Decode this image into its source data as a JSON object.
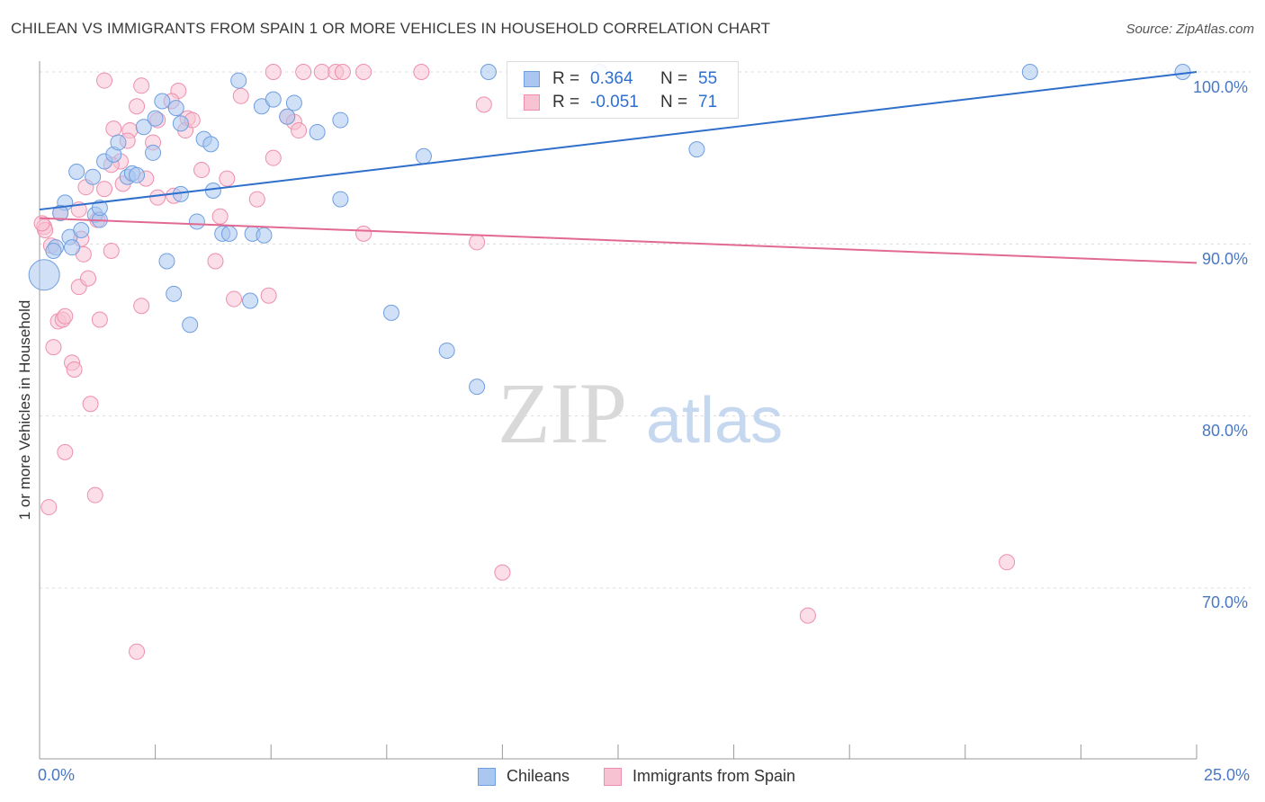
{
  "title": "CHILEAN VS IMMIGRANTS FROM SPAIN 1 OR MORE VEHICLES IN HOUSEHOLD CORRELATION CHART",
  "source": "Source: ZipAtlas.com",
  "watermark": {
    "zip": "ZIP",
    "atlas": "atlas"
  },
  "legend": {
    "row1": {
      "r_label": "R =",
      "r_value": "0.364",
      "n_label": "N =",
      "n_value": "55"
    },
    "row2": {
      "r_label": "R =",
      "r_value": "-0.051",
      "n_label": "N =",
      "n_value": "71"
    }
  },
  "colors": {
    "blue": "#6f9fe0",
    "blue_fill": "#a9c7f0",
    "blue_line": "#2f6fcc",
    "pink": "#ee8fad",
    "pink_fill": "#f7c3d3",
    "pink_line": "#e26a92",
    "tick_text": "#4a78c4"
  },
  "chart_data": {
    "type": "scatter",
    "title": "CHILEAN VS IMMIGRANTS FROM SPAIN 1 OR MORE VEHICLES IN HOUSEHOLD CORRELATION CHART",
    "xlabel": "",
    "ylabel": "1 or more Vehicles in Household",
    "xlim": [
      0,
      25
    ],
    "ylim": [
      59,
      100.8
    ],
    "x_ticks": [
      "0.0%",
      "25.0%"
    ],
    "y_ticks": [
      {
        "value": 100,
        "label": "100.0%"
      },
      {
        "value": 90,
        "label": "90.0%"
      },
      {
        "value": 80,
        "label": "80.0%"
      },
      {
        "value": 70,
        "label": "70.0%"
      }
    ],
    "grid": true,
    "legend_position": "top-center",
    "series": [
      {
        "name": "Chileans",
        "color": "#6f9fe0",
        "trend": {
          "x": [
            0,
            25
          ],
          "y": [
            92.0,
            100.0
          ]
        },
        "points": [
          [
            0.55,
            92.4
          ],
          [
            0.45,
            91.8
          ],
          [
            1.2,
            91.7
          ],
          [
            1.3,
            91.4
          ],
          [
            0.65,
            90.4
          ],
          [
            0.35,
            89.8
          ],
          [
            0.3,
            89.6
          ],
          [
            0.9,
            90.8
          ],
          [
            0.8,
            94.2
          ],
          [
            1.15,
            93.9
          ],
          [
            1.4,
            94.8
          ],
          [
            1.6,
            95.2
          ],
          [
            1.7,
            95.9
          ],
          [
            1.9,
            93.9
          ],
          [
            2.0,
            94.1
          ],
          [
            2.25,
            96.8
          ],
          [
            2.45,
            95.3
          ],
          [
            2.5,
            97.3
          ],
          [
            2.65,
            98.3
          ],
          [
            2.95,
            97.9
          ],
          [
            3.05,
            97.0
          ],
          [
            3.55,
            96.1
          ],
          [
            3.7,
            95.8
          ],
          [
            3.75,
            93.1
          ],
          [
            3.05,
            92.9
          ],
          [
            3.4,
            91.3
          ],
          [
            3.95,
            90.6
          ],
          [
            4.1,
            90.6
          ],
          [
            4.6,
            90.6
          ],
          [
            4.85,
            90.5
          ],
          [
            4.3,
            99.5
          ],
          [
            4.8,
            98.0
          ],
          [
            5.05,
            98.4
          ],
          [
            5.35,
            97.4
          ],
          [
            5.5,
            98.2
          ],
          [
            6.0,
            96.5
          ],
          [
            6.5,
            97.2
          ],
          [
            6.5,
            92.6
          ],
          [
            8.3,
            95.1
          ],
          [
            9.7,
            100.0
          ],
          [
            12.1,
            100.0
          ],
          [
            14.2,
            95.5
          ],
          [
            21.4,
            100.0
          ],
          [
            24.7,
            100.0
          ],
          [
            2.9,
            87.1
          ],
          [
            2.75,
            89.0
          ],
          [
            3.25,
            85.3
          ],
          [
            4.55,
            86.7
          ],
          [
            7.6,
            86.0
          ],
          [
            8.8,
            83.8
          ],
          [
            9.45,
            81.7
          ],
          [
            1.3,
            92.1
          ],
          [
            2.1,
            94.0
          ],
          [
            0.7,
            89.8
          ],
          [
            0.1,
            88.2
          ]
        ]
      },
      {
        "name": "Immigrants from Spain",
        "color": "#ee8fad",
        "trend": {
          "x": [
            0,
            25
          ],
          "y": [
            91.5,
            88.9
          ]
        },
        "points": [
          [
            0.1,
            91.0
          ],
          [
            0.12,
            90.8
          ],
          [
            1.4,
            99.5
          ],
          [
            2.1,
            98.0
          ],
          [
            2.2,
            99.2
          ],
          [
            3.0,
            98.9
          ],
          [
            2.45,
            95.9
          ],
          [
            1.6,
            96.7
          ],
          [
            1.75,
            94.8
          ],
          [
            1.95,
            96.6
          ],
          [
            2.3,
            93.8
          ],
          [
            2.55,
            92.7
          ],
          [
            2.9,
            92.8
          ],
          [
            2.85,
            98.3
          ],
          [
            3.2,
            97.3
          ],
          [
            3.15,
            96.6
          ],
          [
            3.5,
            94.3
          ],
          [
            4.05,
            93.8
          ],
          [
            3.9,
            91.6
          ],
          [
            4.35,
            98.6
          ],
          [
            4.7,
            92.6
          ],
          [
            5.05,
            95.0
          ],
          [
            5.35,
            97.4
          ],
          [
            5.5,
            97.1
          ],
          [
            5.6,
            96.6
          ],
          [
            5.05,
            100.0
          ],
          [
            5.7,
            100.0
          ],
          [
            6.1,
            100.0
          ],
          [
            6.4,
            100.0
          ],
          [
            6.55,
            100.0
          ],
          [
            7.0,
            100.0
          ],
          [
            8.25,
            100.0
          ],
          [
            9.6,
            98.1
          ],
          [
            7.0,
            90.6
          ],
          [
            9.45,
            90.1
          ],
          [
            1.0,
            93.3
          ],
          [
            1.4,
            93.2
          ],
          [
            1.8,
            93.5
          ],
          [
            1.25,
            91.4
          ],
          [
            0.85,
            92.0
          ],
          [
            0.95,
            89.4
          ],
          [
            0.85,
            87.5
          ],
          [
            1.05,
            88.0
          ],
          [
            1.55,
            89.6
          ],
          [
            0.4,
            85.5
          ],
          [
            0.5,
            85.6
          ],
          [
            0.55,
            85.8
          ],
          [
            1.3,
            85.6
          ],
          [
            2.2,
            86.4
          ],
          [
            3.8,
            89.0
          ],
          [
            4.2,
            86.8
          ],
          [
            4.95,
            87.0
          ],
          [
            0.3,
            84.0
          ],
          [
            0.7,
            83.1
          ],
          [
            0.75,
            82.7
          ],
          [
            1.1,
            80.7
          ],
          [
            0.55,
            77.9
          ],
          [
            1.2,
            75.4
          ],
          [
            0.2,
            74.7
          ],
          [
            2.1,
            66.3
          ],
          [
            10.0,
            70.9
          ],
          [
            16.6,
            68.4
          ],
          [
            20.9,
            71.5
          ],
          [
            0.45,
            91.8
          ],
          [
            0.9,
            90.3
          ],
          [
            1.55,
            94.6
          ],
          [
            2.55,
            97.2
          ],
          [
            0.25,
            89.9
          ],
          [
            3.3,
            97.2
          ],
          [
            0.05,
            91.2
          ],
          [
            1.9,
            96.0
          ]
        ]
      }
    ]
  },
  "bottom_legend": {
    "chileans": "Chileans",
    "spain": "Immigrants from Spain"
  },
  "axis": {
    "x_min_label": "0.0%",
    "x_max_label": "25.0%",
    "ylabel": "1 or more Vehicles in Household",
    "y100": "100.0%",
    "y90": "90.0%",
    "y80": "80.0%",
    "y70": "70.0%"
  }
}
